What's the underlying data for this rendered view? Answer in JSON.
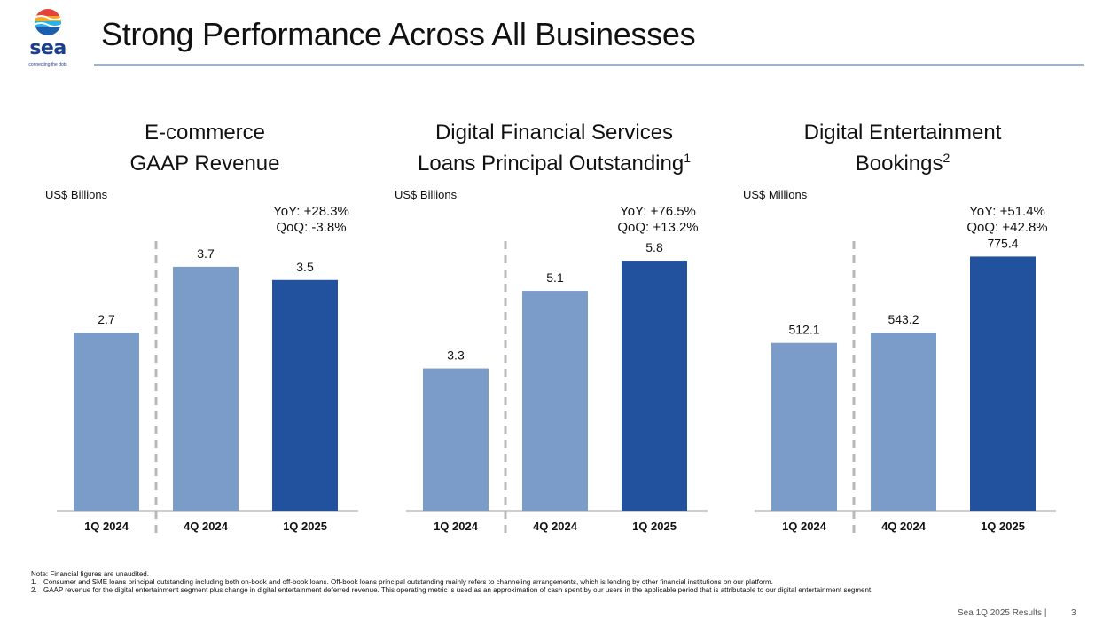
{
  "slide": {
    "title": "Strong Performance Across All Businesses",
    "logo_text": "sea",
    "logo_tagline": "connecting the dots"
  },
  "panels": [
    {
      "title_line1": "E-commerce",
      "title_line2": "GAAP Revenue",
      "title_sup": "",
      "unit": "US$ Billions",
      "yoy": "YoY: +28.3%",
      "qoq": "QoQ: -3.8%"
    },
    {
      "title_line1": "Digital Financial Services",
      "title_line2": "Loans Principal Outstanding",
      "title_sup": "1",
      "unit": "US$ Billions",
      "yoy": "YoY: +76.5%",
      "qoq": "QoQ: +13.2%"
    },
    {
      "title_line1": "Digital Entertainment",
      "title_line2": "Bookings",
      "title_sup": "2",
      "unit": "US$ Millions",
      "yoy": "YoY: +51.4%",
      "qoq": "QoQ: +42.8%"
    }
  ],
  "chart_data": [
    {
      "type": "bar",
      "title": "E-commerce GAAP Revenue",
      "ylabel": "US$ Billions",
      "categories": [
        "1Q 2024",
        "4Q 2024",
        "1Q 2025"
      ],
      "values": [
        2.7,
        3.7,
        3.5
      ],
      "labels": [
        "2.7",
        "3.7",
        "3.5"
      ],
      "ylim": [
        0,
        4.25
      ],
      "colors": [
        "#7b9bc9",
        "#7b9bc9",
        "#22519e"
      ],
      "separator_after_index": 0,
      "grid": false
    },
    {
      "type": "bar",
      "title": "Digital Financial Services Loans Principal Outstanding",
      "ylabel": "US$ Billions",
      "categories": [
        "1Q 2024",
        "4Q 2024",
        "1Q 2025"
      ],
      "values": [
        3.3,
        5.1,
        5.8
      ],
      "labels": [
        "3.3",
        "5.1",
        "5.8"
      ],
      "ylim": [
        0,
        6.5
      ],
      "colors": [
        "#7b9bc9",
        "#7b9bc9",
        "#22519e"
      ],
      "separator_after_index": 0,
      "grid": false
    },
    {
      "type": "bar",
      "title": "Digital Entertainment Bookings",
      "ylabel": "US$ Millions",
      "categories": [
        "1Q 2024",
        "4Q 2024",
        "1Q 2025"
      ],
      "values": [
        512.1,
        543.2,
        775.4
      ],
      "labels": [
        "512.1",
        "543.2",
        "775.4"
      ],
      "ylim": [
        0,
        855
      ],
      "colors": [
        "#7b9bc9",
        "#7b9bc9",
        "#22519e"
      ],
      "separator_after_index": 0,
      "grid": false
    }
  ],
  "footnotes": {
    "note": "Note: Financial figures are unaudited.",
    "items": [
      {
        "num": "1.",
        "text": "Consumer and SME loans principal outstanding including both on-book and off-book loans. Off-book loans principal outstanding mainly refers to channeling arrangements, which is lending by other financial institutions on our platform."
      },
      {
        "num": "2.",
        "text": "GAAP revenue for the digital entertainment segment plus change in digital entertainment deferred revenue. This operating metric is used as an approximation of cash spent by our users in the applicable period that is attributable to our digital entertainment segment."
      }
    ]
  },
  "footer": {
    "source": "Sea 1Q 2025 Results |",
    "page": "3"
  },
  "colors": {
    "bar_light": "#7b9bc9",
    "bar_dark": "#22519e",
    "title_rule": "#9fb3cf",
    "brand": "#1a3f8f"
  }
}
